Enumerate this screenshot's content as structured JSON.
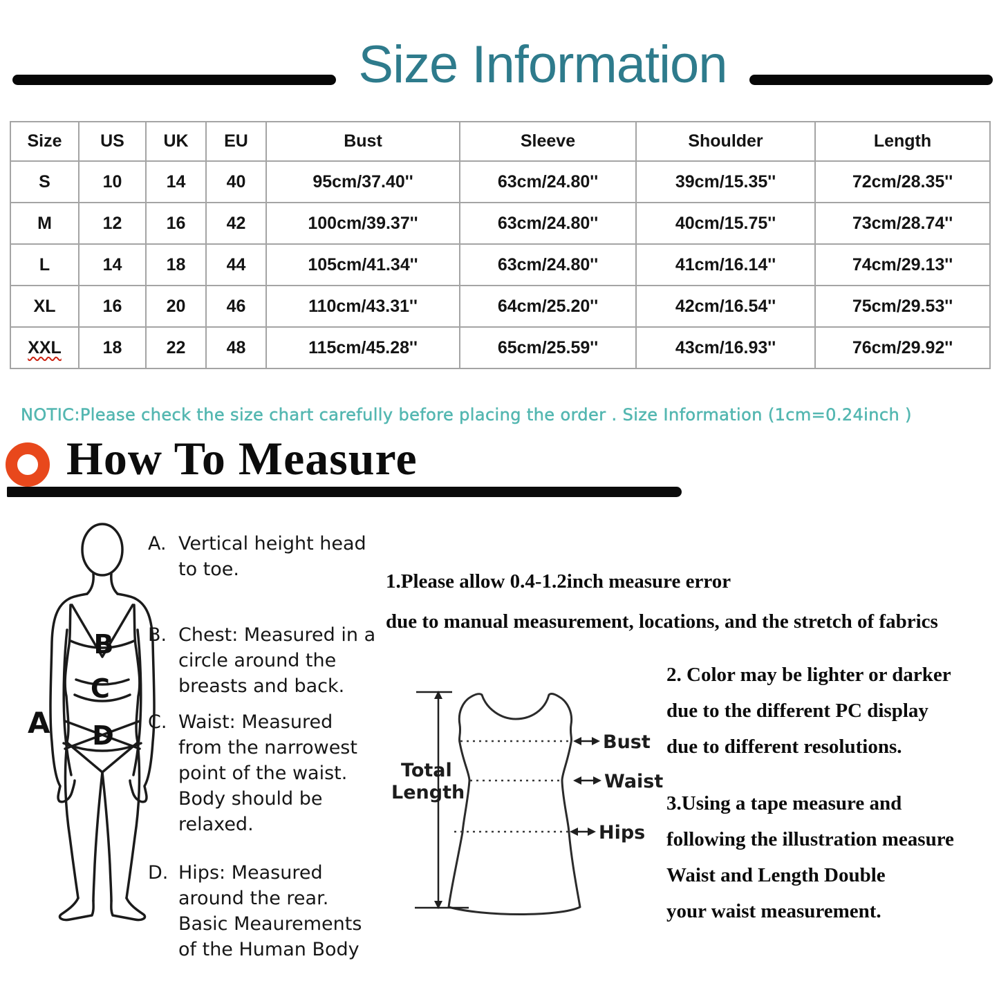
{
  "header": {
    "title": "Size Information"
  },
  "size_table": {
    "headers": [
      "Size",
      "US",
      "UK",
      "EU",
      "Bust",
      "Sleeve",
      "Shoulder",
      "Length"
    ],
    "rows": [
      [
        "S",
        "10",
        "14",
        "40",
        "95cm/37.40''",
        "63cm/24.80''",
        "39cm/15.35''",
        "72cm/28.35''"
      ],
      [
        "M",
        "12",
        "16",
        "42",
        "100cm/39.37''",
        "63cm/24.80''",
        "40cm/15.75''",
        "73cm/28.74''"
      ],
      [
        "L",
        "14",
        "18",
        "44",
        "105cm/41.34''",
        "63cm/24.80''",
        "41cm/16.14''",
        "74cm/29.13''"
      ],
      [
        "XL",
        "16",
        "20",
        "46",
        "110cm/43.31''",
        "64cm/25.20''",
        "42cm/16.54''",
        "75cm/29.53''"
      ],
      [
        "XXL",
        "18",
        "22",
        "48",
        "115cm/45.28''",
        "65cm/25.59''",
        "43cm/16.93''",
        "76cm/29.92''"
      ]
    ],
    "squiggle": {
      "row": 4,
      "col": 0
    }
  },
  "notice": "NOTIC:Please check the size chart carefully before placing the order . Size Information (1cm=0.24inch )",
  "how_to_measure": {
    "heading": "How To Measure"
  },
  "measure_steps": [
    {
      "label": "A.",
      "lines": [
        "Vertical height head",
        "to toe."
      ]
    },
    {
      "label": "B.",
      "lines": [
        "Chest: Measured in a",
        "circle around the",
        "breasts and back."
      ]
    },
    {
      "label": "C.",
      "lines": [
        "Waist: Measured",
        "from the narrowest",
        "point of the waist.",
        "Body should be",
        "relaxed."
      ]
    },
    {
      "label": "D.",
      "lines": [
        "Hips: Measured",
        "around the rear.",
        "Basic Meaurements",
        "of the Human Body"
      ]
    }
  ],
  "figure": {
    "side_label": "A",
    "bust_letter": "B",
    "waist_letter": "C",
    "hips_letter": "D"
  },
  "dress_diagram": {
    "total_lines": [
      "Total",
      "Length"
    ],
    "bust_label": "Bust",
    "waist_label": "Waist",
    "hips_label": "Hips"
  },
  "notes": [
    {
      "lines": [
        "1.Please allow 0.4-1.2inch measure error",
        "due to manual measurement, locations, and the stretch of fabrics"
      ]
    },
    {
      "lines": [
        "2. Color may be lighter or darker",
        "due to the different PC display",
        "due to different resolutions."
      ]
    },
    {
      "lines": [
        "3.Using a tape measure and",
        "following the illustration measure",
        "Waist and Length Double",
        "your waist measurement."
      ]
    }
  ],
  "colors": {
    "title_teal": "#2e7b8c",
    "notice_teal": "#54b7b1",
    "accent_orange": "#e8481c",
    "heading_black": "#0c0c0c",
    "table_border": "#a4a4a4",
    "squiggle_red": "#cc2211"
  }
}
